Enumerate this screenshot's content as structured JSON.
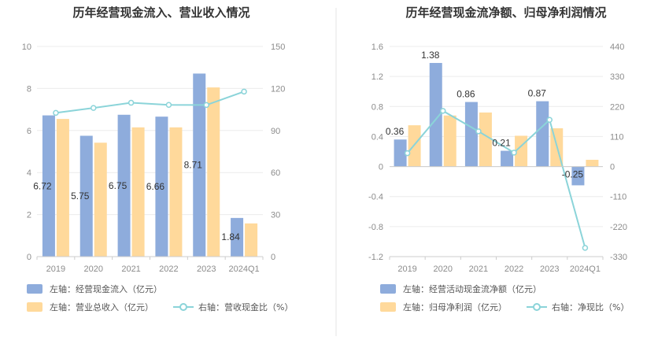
{
  "colors": {
    "bar1": "#8eacdc",
    "bar2": "#ffd99b",
    "line": "#8bd4d9",
    "grid": "#ececec",
    "divider": "#e6e6e6"
  },
  "chart_data": [
    {
      "type": "bar",
      "title": "历年经营现金流入、营业收入情况",
      "categories": [
        "2019",
        "2020",
        "2021",
        "2022",
        "2023",
        "2024Q1"
      ],
      "left_axis": {
        "min": 0,
        "max": 10,
        "ticks": [
          "0",
          "2",
          "4",
          "6",
          "8",
          "10"
        ]
      },
      "right_axis": {
        "min": 0,
        "max": 150,
        "ticks": [
          "0",
          "30",
          "60",
          "90",
          "120",
          "150"
        ]
      },
      "grid": true,
      "legend_position": "bottom",
      "series": [
        {
          "name": "左轴：经营现金流入（亿元）",
          "kind": "bar",
          "axis": "left",
          "values": [
            6.72,
            5.75,
            6.75,
            6.66,
            8.71,
            1.84
          ],
          "labels": [
            "6.72",
            "5.75",
            "6.75",
            "6.66",
            "8.71",
            "1.84"
          ]
        },
        {
          "name": "左轴：营业总收入（亿元）",
          "kind": "bar",
          "axis": "left",
          "values": [
            6.55,
            5.42,
            6.15,
            6.15,
            8.05,
            1.58
          ]
        },
        {
          "name": "右轴：营收现金比（%）",
          "kind": "line",
          "axis": "right",
          "values": [
            102.6,
            106.1,
            109.8,
            108.3,
            108.2,
            117.8
          ]
        }
      ]
    },
    {
      "type": "bar",
      "title": "历年经营现金流净额、归母净利润情况",
      "categories": [
        "2019",
        "2020",
        "2021",
        "2022",
        "2023",
        "2024Q1"
      ],
      "left_axis": {
        "min": -1.2,
        "max": 1.6,
        "ticks": [
          "-1.2",
          "-0.8",
          "-0.4",
          "0",
          "0.4",
          "0.8",
          "1.2",
          "1.6"
        ]
      },
      "right_axis": {
        "min": -330,
        "max": 440,
        "ticks": [
          "-330",
          "-220",
          "-110",
          "0",
          "110",
          "220",
          "330",
          "440"
        ]
      },
      "grid": true,
      "legend_position": "bottom",
      "series": [
        {
          "name": "左轴：经营活动现金流净额（亿元）",
          "kind": "bar",
          "axis": "left",
          "values": [
            0.36,
            1.38,
            0.86,
            0.21,
            0.87,
            -0.25
          ],
          "labels": [
            "0.36",
            "1.38",
            "0.86",
            "0.21",
            "0.87",
            "-0.25"
          ]
        },
        {
          "name": "左轴：归母净利润（亿元）",
          "kind": "bar",
          "axis": "left",
          "values": [
            0.55,
            0.68,
            0.72,
            0.41,
            0.51,
            0.09
          ]
        },
        {
          "name": "右轴：净现比（%）",
          "kind": "line",
          "axis": "right",
          "values": [
            49,
            204,
            129,
            51,
            171,
            -298
          ]
        }
      ]
    }
  ]
}
